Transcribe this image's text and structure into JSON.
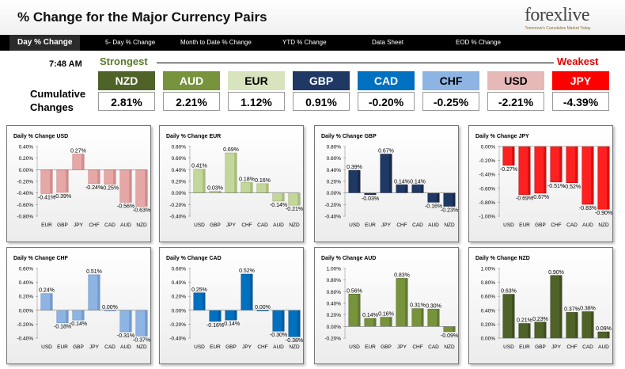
{
  "header": {
    "title": "% Change for the Major Currency Pairs",
    "logo_text": "forexlive",
    "logo_tagline": "Tomorrow's Cumulative Market Today"
  },
  "nav": {
    "tabs": [
      {
        "label": "Day % Change",
        "active": true
      },
      {
        "label": "5- Day % Change",
        "active": false
      },
      {
        "label": "Month to Date % Change",
        "active": false
      },
      {
        "label": "YTD % Change",
        "active": false
      },
      {
        "label": "Data Sheet",
        "active": false
      },
      {
        "label": "EOD % Change",
        "active": false
      }
    ]
  },
  "summary": {
    "time": "7:48 AM",
    "strongest_label": "Strongest",
    "weakest_label": "Weakest",
    "cumulative_label_line1": "Cumulative",
    "cumulative_label_line2": "Changes",
    "currencies": [
      {
        "code": "NZD",
        "value": "2.81%",
        "color": "#4f6228",
        "text_color": "#ffffff"
      },
      {
        "code": "AUD",
        "value": "2.21%",
        "color": "#77933c",
        "text_color": "#ffffff"
      },
      {
        "code": "EUR",
        "value": "1.12%",
        "color": "#d7e4bd",
        "text_color": "#000000"
      },
      {
        "code": "GBP",
        "value": "0.91%",
        "color": "#1f3864",
        "text_color": "#ffffff"
      },
      {
        "code": "CAD",
        "value": "-0.20%",
        "color": "#0070c0",
        "text_color": "#ffffff"
      },
      {
        "code": "CHF",
        "value": "-0.25%",
        "color": "#8db4e2",
        "text_color": "#000000"
      },
      {
        "code": "USD",
        "value": "-2.21%",
        "color": "#e6b9b8",
        "text_color": "#000000"
      },
      {
        "code": "JPY",
        "value": "-4.39%",
        "color": "#ff0000",
        "text_color": "#ffffff"
      }
    ]
  },
  "chart_data": [
    {
      "type": "bar",
      "title": "Daily % Change USD",
      "color": "#e6a8a6",
      "dark": "#c07070",
      "ylim": [
        -0.8,
        0.4
      ],
      "ticks": [
        "0.40%",
        "0.20%",
        "0.00%",
        "-0.20%",
        "-0.40%",
        "-0.60%",
        "-0.80%"
      ],
      "categories": [
        "EUR",
        "GBP",
        "JPY",
        "CHF",
        "CAD",
        "AUD",
        "NZD"
      ],
      "values": [
        -0.41,
        -0.39,
        0.27,
        -0.24,
        -0.25,
        -0.56,
        -0.63
      ],
      "labels": [
        "-0.41%",
        "-0.39%",
        "0.27%",
        "-0.24%",
        "-0.25%",
        "-0.56%",
        "-0.63%"
      ]
    },
    {
      "type": "bar",
      "title": "Daily % Change EUR",
      "color": "#c4d79b",
      "dark": "#8ea65c",
      "ylim": [
        -0.4,
        0.8
      ],
      "ticks": [
        "0.80%",
        "0.60%",
        "0.40%",
        "0.20%",
        "0.00%",
        "-0.20%",
        "-0.40%"
      ],
      "categories": [
        "USD",
        "GBP",
        "JPY",
        "CHF",
        "CAD",
        "AUD",
        "NZD"
      ],
      "values": [
        0.41,
        0.03,
        0.69,
        0.18,
        0.16,
        -0.14,
        -0.21
      ],
      "labels": [
        "0.41%",
        "0.03%",
        "0.69%",
        "0.18%",
        "0.16%",
        "-0.14%",
        "-0.21%"
      ]
    },
    {
      "type": "bar",
      "title": "Daily % Change GBP",
      "color": "#1f3864",
      "dark": "#0f1c34",
      "ylim": [
        -0.4,
        0.8
      ],
      "ticks": [
        "0.80%",
        "0.60%",
        "0.40%",
        "0.20%",
        "0.00%",
        "-0.20%",
        "-0.40%"
      ],
      "categories": [
        "USD",
        "EUR",
        "JPY",
        "CHF",
        "CAD",
        "AUD",
        "NZD"
      ],
      "values": [
        0.39,
        -0.03,
        0.67,
        0.14,
        0.14,
        -0.16,
        -0.23
      ],
      "labels": [
        "0.39%",
        "-0.03%",
        "0.67%",
        "0.14%",
        "0.14%",
        "-0.16%",
        "-0.23%"
      ]
    },
    {
      "type": "bar",
      "title": "Daily % Change JPY",
      "color": "#ff2020",
      "dark": "#b00000",
      "ylim": [
        -1.0,
        0.0
      ],
      "ticks": [
        "0.00%",
        "-0.20%",
        "-0.40%",
        "-0.60%",
        "-0.80%",
        "-1.00%"
      ],
      "categories": [
        "USD",
        "EUR",
        "GBP",
        "CHF",
        "CAD",
        "AUD",
        "NZD"
      ],
      "values": [
        -0.27,
        -0.69,
        -0.67,
        -0.51,
        -0.52,
        -0.83,
        -0.9
      ],
      "labels": [
        "-0.27%",
        "-0.69%",
        "-0.67%",
        "-0.51%",
        "-0.52%",
        "-0.83%",
        "-0.90%"
      ]
    },
    {
      "type": "bar",
      "title": "Daily % Change CHF",
      "color": "#8db4e2",
      "dark": "#5a84b8",
      "ylim": [
        -0.4,
        0.6
      ],
      "ticks": [
        "0.60%",
        "0.40%",
        "0.20%",
        "0.00%",
        "-0.20%",
        "-0.40%"
      ],
      "categories": [
        "USD",
        "EUR",
        "GBP",
        "JPY",
        "CAD",
        "AUD",
        "NZD"
      ],
      "values": [
        0.24,
        -0.18,
        -0.14,
        0.51,
        0.0,
        -0.31,
        -0.37
      ],
      "labels": [
        "0.24%",
        "-0.18%",
        "-0.14%",
        "0.51%",
        "0.00%",
        "-0.31%",
        "-0.37%"
      ]
    },
    {
      "type": "bar",
      "title": "Daily % Change CAD",
      "color": "#0070c0",
      "dark": "#004a80",
      "ylim": [
        -0.4,
        0.6
      ],
      "ticks": [
        "0.60%",
        "0.40%",
        "0.20%",
        "0.00%",
        "-0.20%",
        "-0.40%"
      ],
      "categories": [
        "USD",
        "EUR",
        "GBP",
        "JPY",
        "CHF",
        "AUD",
        "NZD"
      ],
      "values": [
        0.25,
        -0.16,
        -0.14,
        0.52,
        0.0,
        -0.3,
        -0.38
      ],
      "labels": [
        "0.25%",
        "-0.16%",
        "-0.14%",
        "0.52%",
        "0.00%",
        "-0.30%",
        "-0.38%"
      ]
    },
    {
      "type": "bar",
      "title": "Daily % Change AUD",
      "color": "#77933c",
      "dark": "#4f6228",
      "ylim": [
        -0.2,
        1.0
      ],
      "ticks": [
        "1.00%",
        "0.80%",
        "0.60%",
        "0.40%",
        "0.20%",
        "0.00%",
        "-0.20%"
      ],
      "categories": [
        "USD",
        "EUR",
        "GBP",
        "JPY",
        "CHF",
        "CAD",
        "NZD"
      ],
      "values": [
        0.56,
        0.14,
        0.16,
        0.83,
        0.31,
        0.3,
        -0.09
      ],
      "labels": [
        "0.56%",
        "0.14%",
        "0.16%",
        "0.83%",
        "0.31%",
        "0.30%",
        "-0.09%"
      ]
    },
    {
      "type": "bar",
      "title": "Daily % Change NZD",
      "color": "#4f6228",
      "dark": "#2e3a17",
      "ylim": [
        0.0,
        1.0
      ],
      "ticks": [
        "1.00%",
        "0.80%",
        "0.60%",
        "0.40%",
        "0.20%",
        "0.00%"
      ],
      "categories": [
        "USD",
        "EUR",
        "GBP",
        "JPY",
        "CHF",
        "CAD",
        "AUD"
      ],
      "values": [
        0.63,
        0.21,
        0.23,
        0.9,
        0.37,
        0.38,
        0.09
      ],
      "labels": [
        "0.63%",
        "0.21%",
        "0.23%",
        "0.90%",
        "0.37%",
        "0.38%",
        "0.09%"
      ]
    }
  ]
}
